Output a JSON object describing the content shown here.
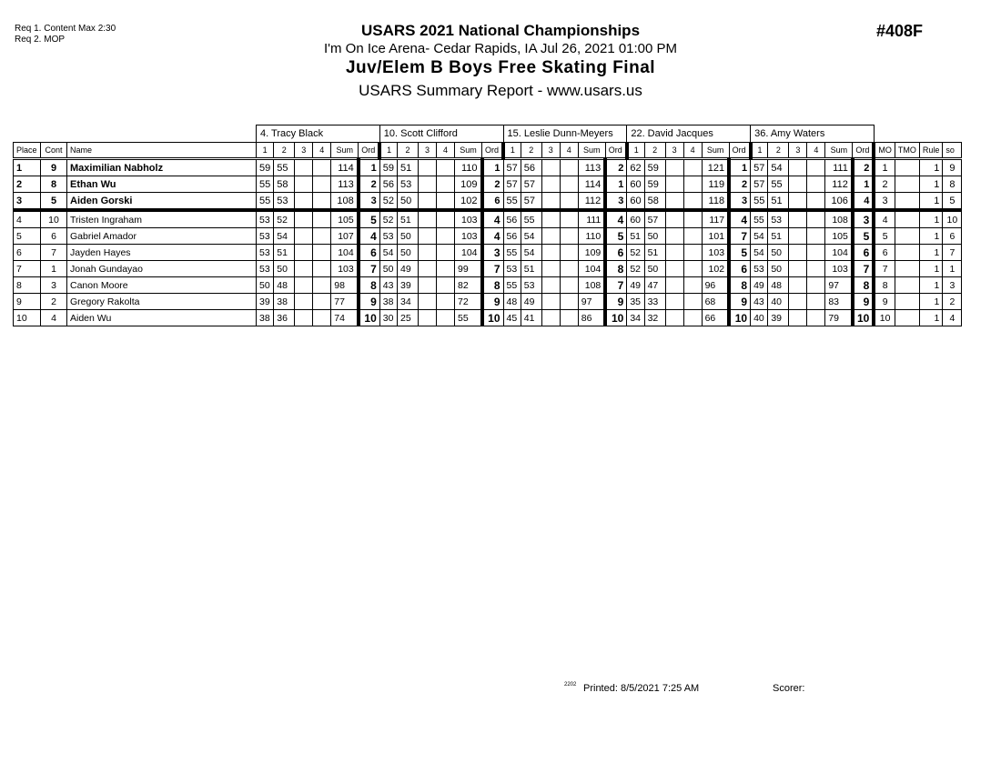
{
  "requirements": [
    "Req  1.  Content Max 2:30",
    "Req  2.  MOP"
  ],
  "title": "USARS 2021 National Championships",
  "venue": "I'm On Ice Arena- Cedar Rapids, IA  Jul 26, 2021  01:00 PM",
  "event": "Juv/Elem B Boys Free Skating Final",
  "report": "USARS Summary Report - www.usars.us",
  "event_number": "#408F",
  "columns": {
    "place": "Place",
    "cont": "Cont",
    "name": "Name",
    "judge_cols": [
      "1",
      "2",
      "3",
      "4",
      "Sum",
      "Ord"
    ],
    "mo": "MO",
    "tmo": "TMO",
    "rule": "Rule",
    "so": "so"
  },
  "judges": [
    "4.  Tracy Black",
    "10.  Scott Clifford",
    "15.  Leslie Dunn-Meyers",
    "22.  David Jacques",
    "36.  Amy Waters"
  ],
  "rows": [
    {
      "place": "1",
      "cont": "9",
      "name": "Maximilian Nabholz",
      "scores": [
        [
          "59",
          "55",
          "114",
          "1"
        ],
        [
          "59",
          "51",
          "110",
          "1"
        ],
        [
          "57",
          "56",
          "113",
          "2"
        ],
        [
          "62",
          "59",
          "121",
          "1"
        ],
        [
          "57",
          "54",
          "111",
          "2"
        ]
      ],
      "mo": "1",
      "tmo": "",
      "rule": "1",
      "so": "9"
    },
    {
      "place": "2",
      "cont": "8",
      "name": "Ethan Wu",
      "scores": [
        [
          "55",
          "58",
          "113",
          "2"
        ],
        [
          "56",
          "53",
          "109",
          "2"
        ],
        [
          "57",
          "57",
          "114",
          "1"
        ],
        [
          "60",
          "59",
          "119",
          "2"
        ],
        [
          "57",
          "55",
          "112",
          "1"
        ]
      ],
      "mo": "2",
      "tmo": "",
      "rule": "1",
      "so": "8"
    },
    {
      "place": "3",
      "cont": "5",
      "name": "Aiden Gorski",
      "scores": [
        [
          "55",
          "53",
          "108",
          "3"
        ],
        [
          "52",
          "50",
          "102",
          "6"
        ],
        [
          "55",
          "57",
          "112",
          "3"
        ],
        [
          "60",
          "58",
          "118",
          "3"
        ],
        [
          "55",
          "51",
          "106",
          "4"
        ]
      ],
      "mo": "3",
      "tmo": "",
      "rule": "1",
      "so": "5"
    },
    {
      "place": "4",
      "cont": "10",
      "name": "Tristen Ingraham",
      "scores": [
        [
          "53",
          "52",
          "105",
          "5"
        ],
        [
          "52",
          "51",
          "103",
          "4"
        ],
        [
          "56",
          "55",
          "111",
          "4"
        ],
        [
          "60",
          "57",
          "117",
          "4"
        ],
        [
          "55",
          "53",
          "108",
          "3"
        ]
      ],
      "mo": "4",
      "tmo": "",
      "rule": "1",
      "so": "10"
    },
    {
      "place": "5",
      "cont": "6",
      "name": "Gabriel Amador",
      "scores": [
        [
          "53",
          "54",
          "107",
          "4"
        ],
        [
          "53",
          "50",
          "103",
          "4"
        ],
        [
          "56",
          "54",
          "110",
          "5"
        ],
        [
          "51",
          "50",
          "101",
          "7"
        ],
        [
          "54",
          "51",
          "105",
          "5"
        ]
      ],
      "mo": "5",
      "tmo": "",
      "rule": "1",
      "so": "6"
    },
    {
      "place": "6",
      "cont": "7",
      "name": "Jayden Hayes",
      "scores": [
        [
          "53",
          "51",
          "104",
          "6"
        ],
        [
          "54",
          "50",
          "104",
          "3"
        ],
        [
          "55",
          "54",
          "109",
          "6"
        ],
        [
          "52",
          "51",
          "103",
          "5"
        ],
        [
          "54",
          "50",
          "104",
          "6"
        ]
      ],
      "mo": "6",
      "tmo": "",
      "rule": "1",
      "so": "7"
    },
    {
      "place": "7",
      "cont": "1",
      "name": "Jonah Gundayao",
      "scores": [
        [
          "53",
          "50",
          "103",
          "7"
        ],
        [
          "50",
          "49",
          "99",
          "7"
        ],
        [
          "53",
          "51",
          "104",
          "8"
        ],
        [
          "52",
          "50",
          "102",
          "6"
        ],
        [
          "53",
          "50",
          "103",
          "7"
        ]
      ],
      "mo": "7",
      "tmo": "",
      "rule": "1",
      "so": "1"
    },
    {
      "place": "8",
      "cont": "3",
      "name": "Canon Moore",
      "scores": [
        [
          "50",
          "48",
          "98",
          "8"
        ],
        [
          "43",
          "39",
          "82",
          "8"
        ],
        [
          "55",
          "53",
          "108",
          "7"
        ],
        [
          "49",
          "47",
          "96",
          "8"
        ],
        [
          "49",
          "48",
          "97",
          "8"
        ]
      ],
      "mo": "8",
      "tmo": "",
      "rule": "1",
      "so": "3"
    },
    {
      "place": "9",
      "cont": "2",
      "name": "Gregory Rakolta",
      "scores": [
        [
          "39",
          "38",
          "77",
          "9"
        ],
        [
          "38",
          "34",
          "72",
          "9"
        ],
        [
          "48",
          "49",
          "97",
          "9"
        ],
        [
          "35",
          "33",
          "68",
          "9"
        ],
        [
          "43",
          "40",
          "83",
          "9"
        ]
      ],
      "mo": "9",
      "tmo": "",
      "rule": "1",
      "so": "2"
    },
    {
      "place": "10",
      "cont": "4",
      "name": "Aiden Wu",
      "scores": [
        [
          "38",
          "36",
          "74",
          "10"
        ],
        [
          "30",
          "25",
          "55",
          "10"
        ],
        [
          "45",
          "41",
          "86",
          "10"
        ],
        [
          "34",
          "32",
          "66",
          "10"
        ],
        [
          "40",
          "39",
          "79",
          "10"
        ]
      ],
      "mo": "10",
      "tmo": "",
      "rule": "1",
      "so": "4"
    }
  ],
  "footer": {
    "code": "2202",
    "printed": "Printed:  8/5/2021  7:25 AM",
    "scorer": "Scorer:"
  }
}
